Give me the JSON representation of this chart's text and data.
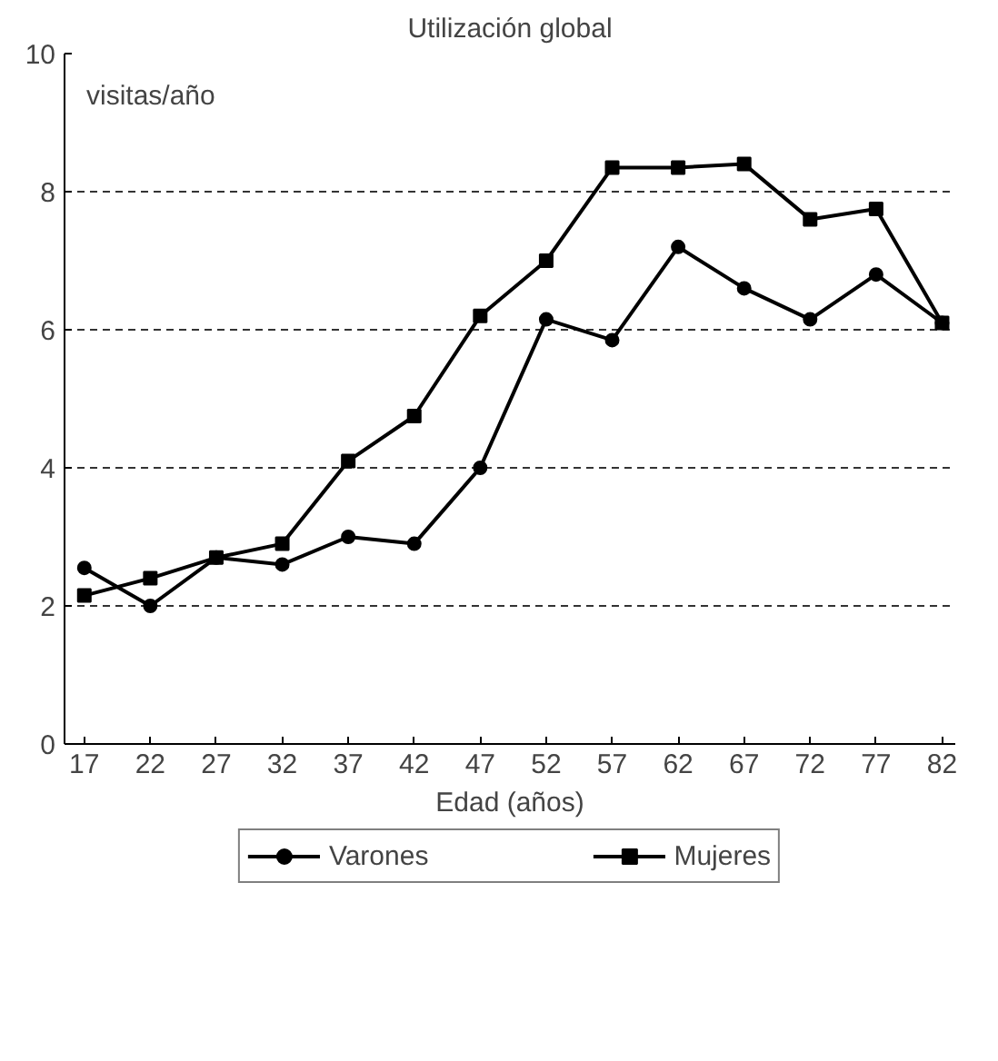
{
  "chart_data": {
    "type": "line",
    "title": "Utilización global",
    "xlabel": "Edad (años)",
    "ylabel": "visitas/año",
    "x": [
      17,
      22,
      27,
      32,
      37,
      42,
      47,
      52,
      57,
      62,
      67,
      72,
      77,
      82
    ],
    "series": [
      {
        "name": "Varones",
        "color": "#000000",
        "marker": "circle",
        "values": [
          2.55,
          2.0,
          2.7,
          2.6,
          3.0,
          2.9,
          4.0,
          6.15,
          5.85,
          7.2,
          6.6,
          6.15,
          6.8,
          6.1
        ]
      },
      {
        "name": "Mujeres",
        "color": "#000000",
        "marker": "square",
        "values": [
          2.15,
          2.4,
          2.7,
          2.9,
          4.1,
          4.75,
          6.2,
          7.0,
          8.35,
          8.35,
          8.4,
          7.6,
          7.75,
          6.1
        ]
      }
    ],
    "xlim": [
      15.5,
      83
    ],
    "ylim": [
      0,
      10
    ],
    "xticks": [
      17,
      22,
      27,
      32,
      37,
      42,
      47,
      52,
      57,
      62,
      67,
      72,
      77,
      82
    ],
    "yticks": [
      0,
      2,
      4,
      6,
      8,
      10
    ],
    "grid": "y",
    "line_style": "solid",
    "legend": "bottom"
  }
}
